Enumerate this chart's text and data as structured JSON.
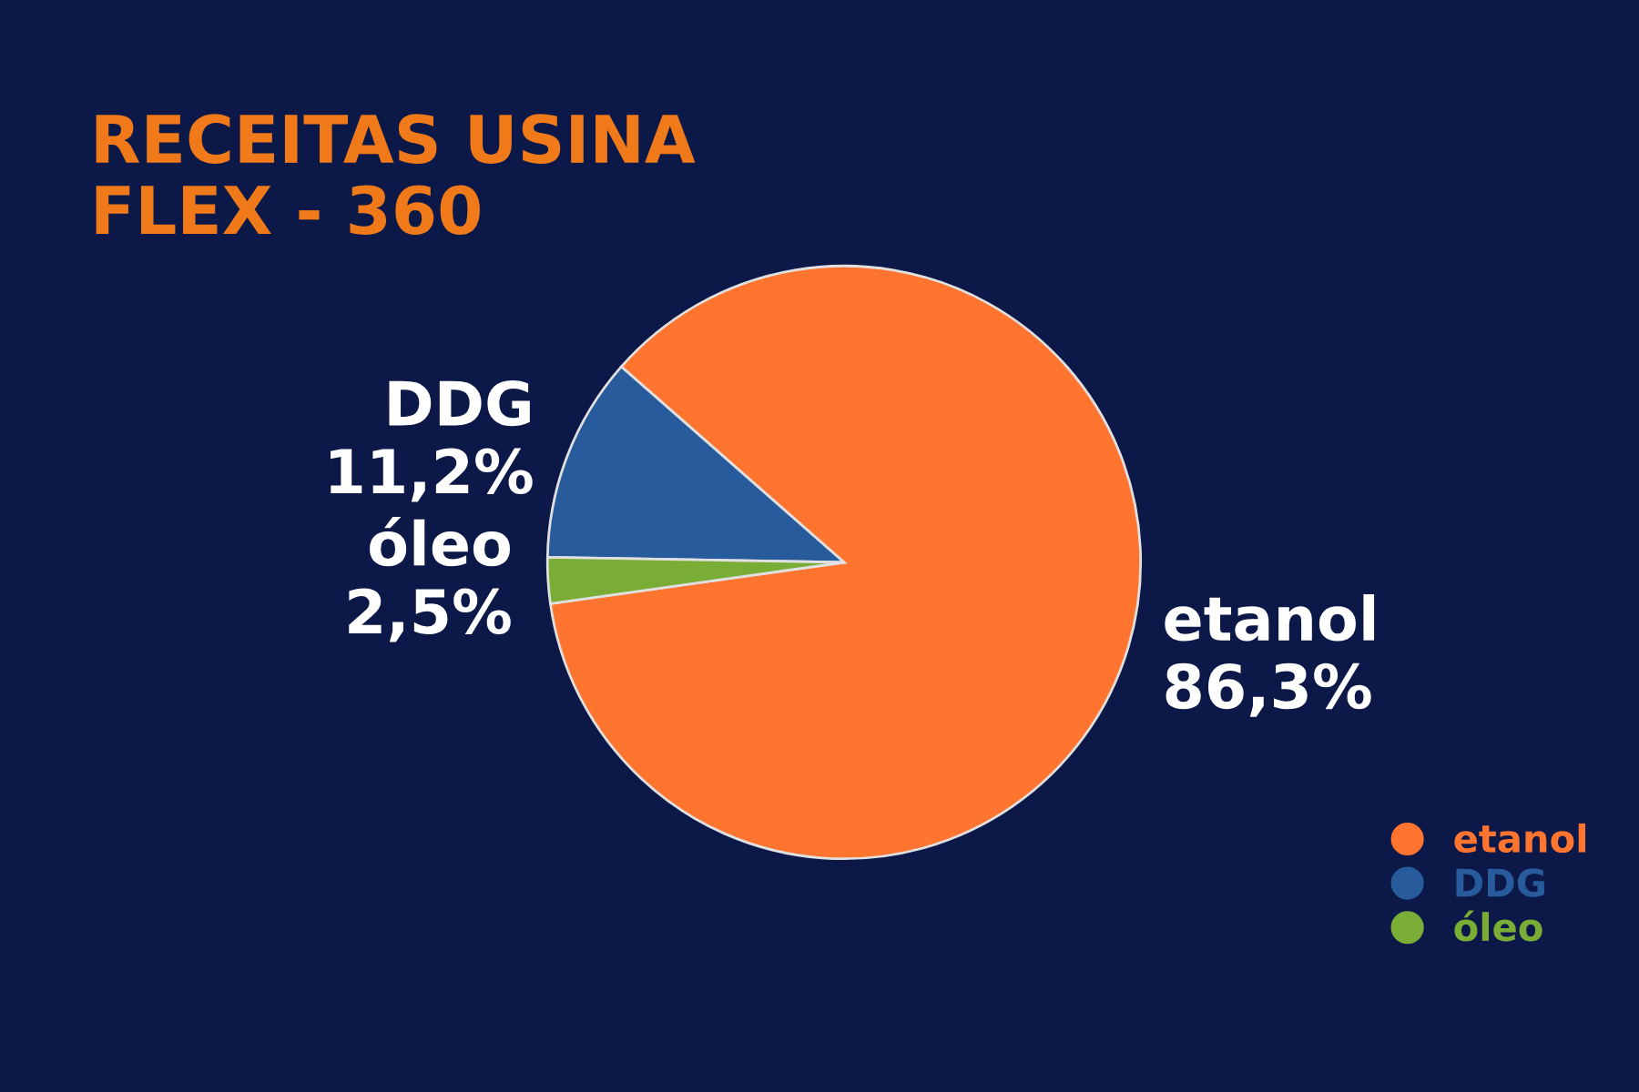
{
  "chart_data": {
    "type": "pie",
    "title": "RECEITAS USINA\nFLEX - 360",
    "categories": [
      "etanol",
      "DDG",
      "óleo"
    ],
    "values": [
      86.3,
      11.2,
      2.5
    ],
    "value_labels": [
      "86,3%",
      "11,2%",
      "2,5%"
    ],
    "colors": [
      "#ff7530",
      "#275b9b",
      "#7aad35"
    ],
    "legend": "bottom right"
  }
}
